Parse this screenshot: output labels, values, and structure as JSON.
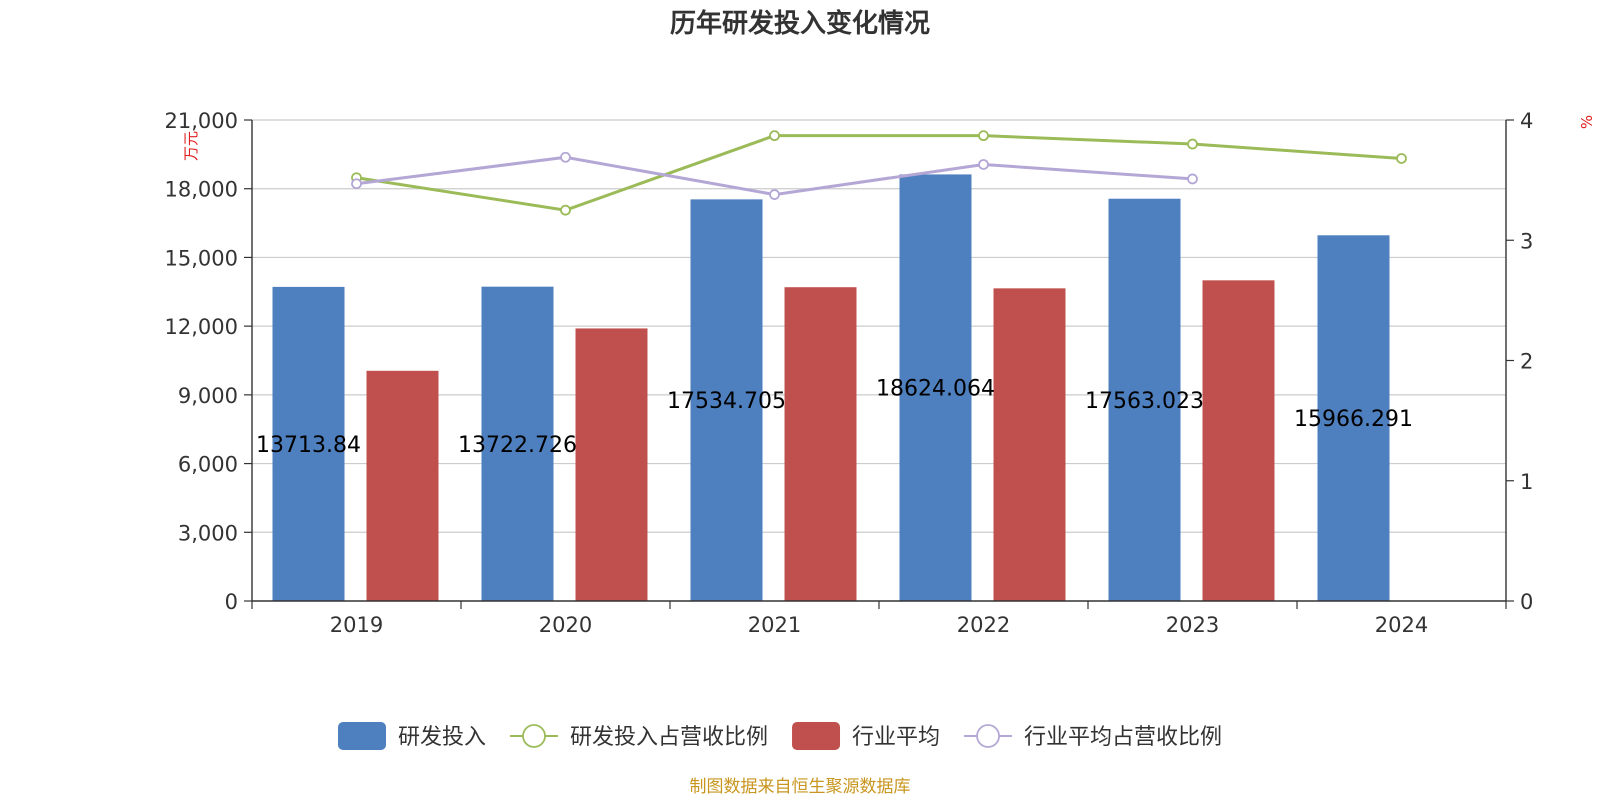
{
  "chart_data": {
    "type": "bar",
    "title": "历年研发投入变化情况",
    "categories": [
      "2019",
      "2020",
      "2021",
      "2022",
      "2023",
      "2024"
    ],
    "y_left": {
      "unit_label": "万元",
      "ylim": [
        0,
        21000
      ],
      "ticks": [
        "0",
        "3,000",
        "6,000",
        "9,000",
        "12,000",
        "15,000",
        "18,000",
        "21,000"
      ],
      "tick_values": [
        0,
        3000,
        6000,
        9000,
        12000,
        15000,
        18000,
        21000
      ]
    },
    "y_right": {
      "unit_label": "%",
      "ylim": [
        0,
        4
      ],
      "ticks": [
        "0",
        "1",
        "2",
        "3",
        "4"
      ],
      "tick_values": [
        0,
        1,
        2,
        3,
        4
      ]
    },
    "series": [
      {
        "name": "研发投入",
        "kind": "bar",
        "axis": "left",
        "color": "#4e7fbe",
        "values": [
          13713.84,
          13722.726,
          17534.705,
          18624.064,
          17563.023,
          15966.291
        ],
        "labels": [
          "13713.84",
          "13722.726",
          "17534.705",
          "18624.064",
          "17563.023",
          "15966.291"
        ]
      },
      {
        "name": "研发投入占营收比例",
        "kind": "line",
        "axis": "right",
        "color": "#9bbb59",
        "values": [
          3.52,
          3.25,
          3.87,
          3.87,
          3.8,
          3.68
        ]
      },
      {
        "name": "行业平均",
        "kind": "bar",
        "axis": "left",
        "color": "#c0504d",
        "values": [
          10050,
          11900,
          13700,
          13650,
          14000,
          null
        ]
      },
      {
        "name": "行业平均占营收比例",
        "kind": "line",
        "axis": "right",
        "color": "#b4a7d6",
        "values": [
          3.47,
          3.69,
          3.38,
          3.63,
          3.51,
          null
        ]
      }
    ],
    "grid": true,
    "legend_position": "bottom"
  },
  "source_note": "制图数据来自恒生聚源数据库"
}
